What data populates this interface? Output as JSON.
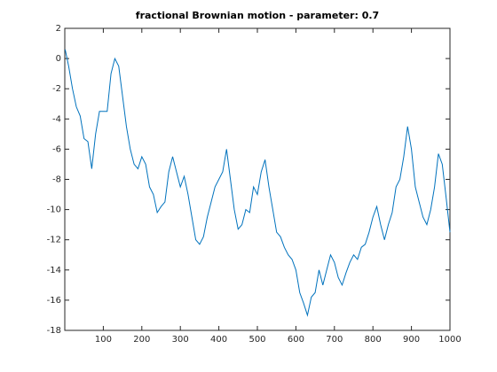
{
  "chart_data": {
    "type": "line",
    "title": "fractional Brownian motion - parameter: 0.7",
    "color": "#0072bd",
    "x": [
      1,
      10,
      20,
      30,
      40,
      50,
      60,
      70,
      80,
      90,
      100,
      110,
      120,
      130,
      140,
      150,
      160,
      170,
      180,
      190,
      200,
      210,
      220,
      230,
      240,
      250,
      260,
      270,
      280,
      290,
      300,
      310,
      320,
      330,
      340,
      350,
      360,
      370,
      380,
      390,
      400,
      410,
      420,
      430,
      440,
      450,
      460,
      470,
      480,
      490,
      500,
      510,
      520,
      530,
      540,
      550,
      560,
      570,
      580,
      590,
      600,
      610,
      620,
      630,
      640,
      650,
      660,
      670,
      680,
      690,
      700,
      710,
      720,
      730,
      740,
      750,
      760,
      770,
      780,
      790,
      800,
      810,
      820,
      830,
      840,
      850,
      860,
      870,
      880,
      890,
      900,
      910,
      920,
      930,
      940,
      950,
      960,
      970,
      980,
      990,
      1000
    ],
    "values": [
      0.6,
      -0.5,
      -2,
      -3.2,
      -3.8,
      -5.3,
      -5.5,
      -7.3,
      -5,
      -3.5,
      -3.5,
      -3.5,
      -1,
      0,
      -0.5,
      -2.5,
      -4.5,
      -6,
      -7,
      -7.3,
      -6.5,
      -7,
      -8.5,
      -9,
      -10.2,
      -9.8,
      -9.5,
      -7.5,
      -6.5,
      -7.5,
      -8.5,
      -7.8,
      -9,
      -10.5,
      -12,
      -12.3,
      -11.8,
      -10.5,
      -9.5,
      -8.5,
      -8,
      -7.5,
      -6,
      -8,
      -10,
      -11.3,
      -11,
      -10,
      -10.2,
      -8.5,
      -9,
      -7.5,
      -6.7,
      -8.5,
      -10,
      -11.5,
      -11.8,
      -12.5,
      -13,
      -13.3,
      -14,
      -15.5,
      -16.2,
      -17,
      -15.8,
      -15.5,
      -14,
      -15,
      -14,
      -13,
      -13.5,
      -14.5,
      -15,
      -14.2,
      -13.5,
      -13,
      -13.3,
      -12.5,
      -12.3,
      -11.5,
      -10.5,
      -9.8,
      -11,
      -12,
      -11,
      -10.2,
      -8.5,
      -8,
      -6.5,
      -4.5,
      -6,
      -8.5,
      -9.5,
      -10.5,
      -11,
      -10,
      -8.5,
      -6.3,
      -7,
      -9.2,
      -11.5
    ],
    "xlim": [
      0,
      1000
    ],
    "xticks": [
      100,
      200,
      300,
      400,
      500,
      600,
      700,
      800,
      900,
      1000
    ],
    "ylim": [
      -18,
      2
    ],
    "yticks": [
      -18,
      -16,
      -14,
      -12,
      -10,
      -8,
      -6,
      -4,
      -2,
      0,
      2
    ]
  }
}
